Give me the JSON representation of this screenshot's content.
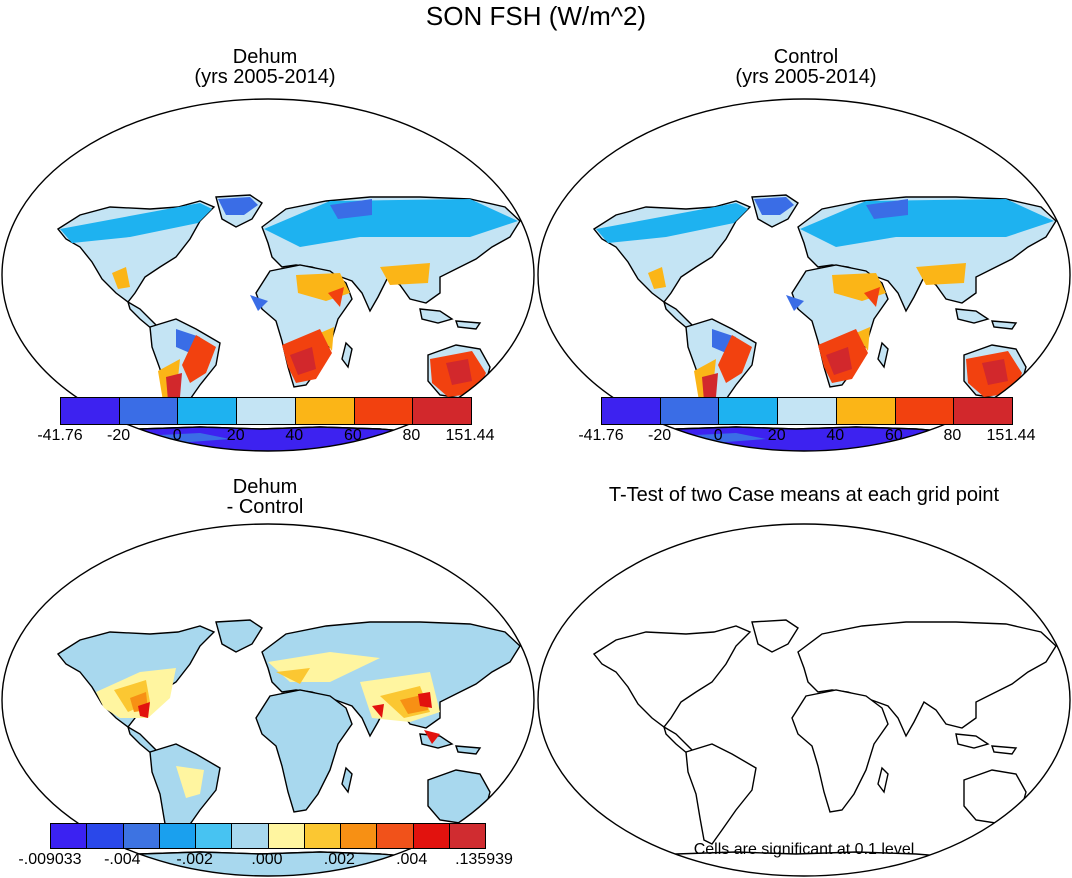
{
  "figure": {
    "title": "SON FSH (W/m^2)"
  },
  "panels": [
    {
      "title_line1": "Dehum",
      "title_line2": "(yrs 2005-2014)"
    },
    {
      "title_line1": "Control",
      "title_line2": "(yrs 2005-2014)"
    },
    {
      "title_line1": "Dehum",
      "title_line2": "- Control"
    },
    {
      "title_line1": "T-Test of two Case means at each grid point"
    }
  ],
  "colorbar_top": {
    "colors": [
      "#3d22f0",
      "#3a6de6",
      "#1eb2f0",
      "#c4e4f4",
      "#fbb517",
      "#f2410f",
      "#d2282c"
    ],
    "labels": [
      "-41.76",
      "-20",
      "0",
      "20",
      "40",
      "60",
      "80",
      "151.44"
    ]
  },
  "colorbar_diff": {
    "colors": [
      "#3b22f2",
      "#2a48ea",
      "#3d73e2",
      "#1aa0ee",
      "#47c3f2",
      "#a8d8ee",
      "#fff5a0",
      "#fbc732",
      "#f79014",
      "#f1521a",
      "#e2120e",
      "#d02c30"
    ],
    "labels": [
      ".009033",
      ".004",
      ".002",
      ".000",
      ".002",
      ".004",
      ".135939"
    ],
    "label_signs": [
      "-",
      "-",
      "-",
      "",
      "",
      "",
      ""
    ]
  },
  "significance_note": "Cells are significant at 0.1 level",
  "chart_data": {
    "type": "heatmap",
    "title": "SON FSH (W/m^2)",
    "maps": [
      {
        "name": "Dehum (yrs 2005-2014)",
        "range": [
          -41.76,
          151.44
        ]
      },
      {
        "name": "Control (yrs 2005-2014)",
        "range": [
          -41.76,
          151.44
        ]
      },
      {
        "name": "Dehum - Control",
        "range": [
          -0.009033,
          0.135939
        ]
      },
      {
        "name": "T-Test of two Case means at each grid point"
      }
    ]
  }
}
